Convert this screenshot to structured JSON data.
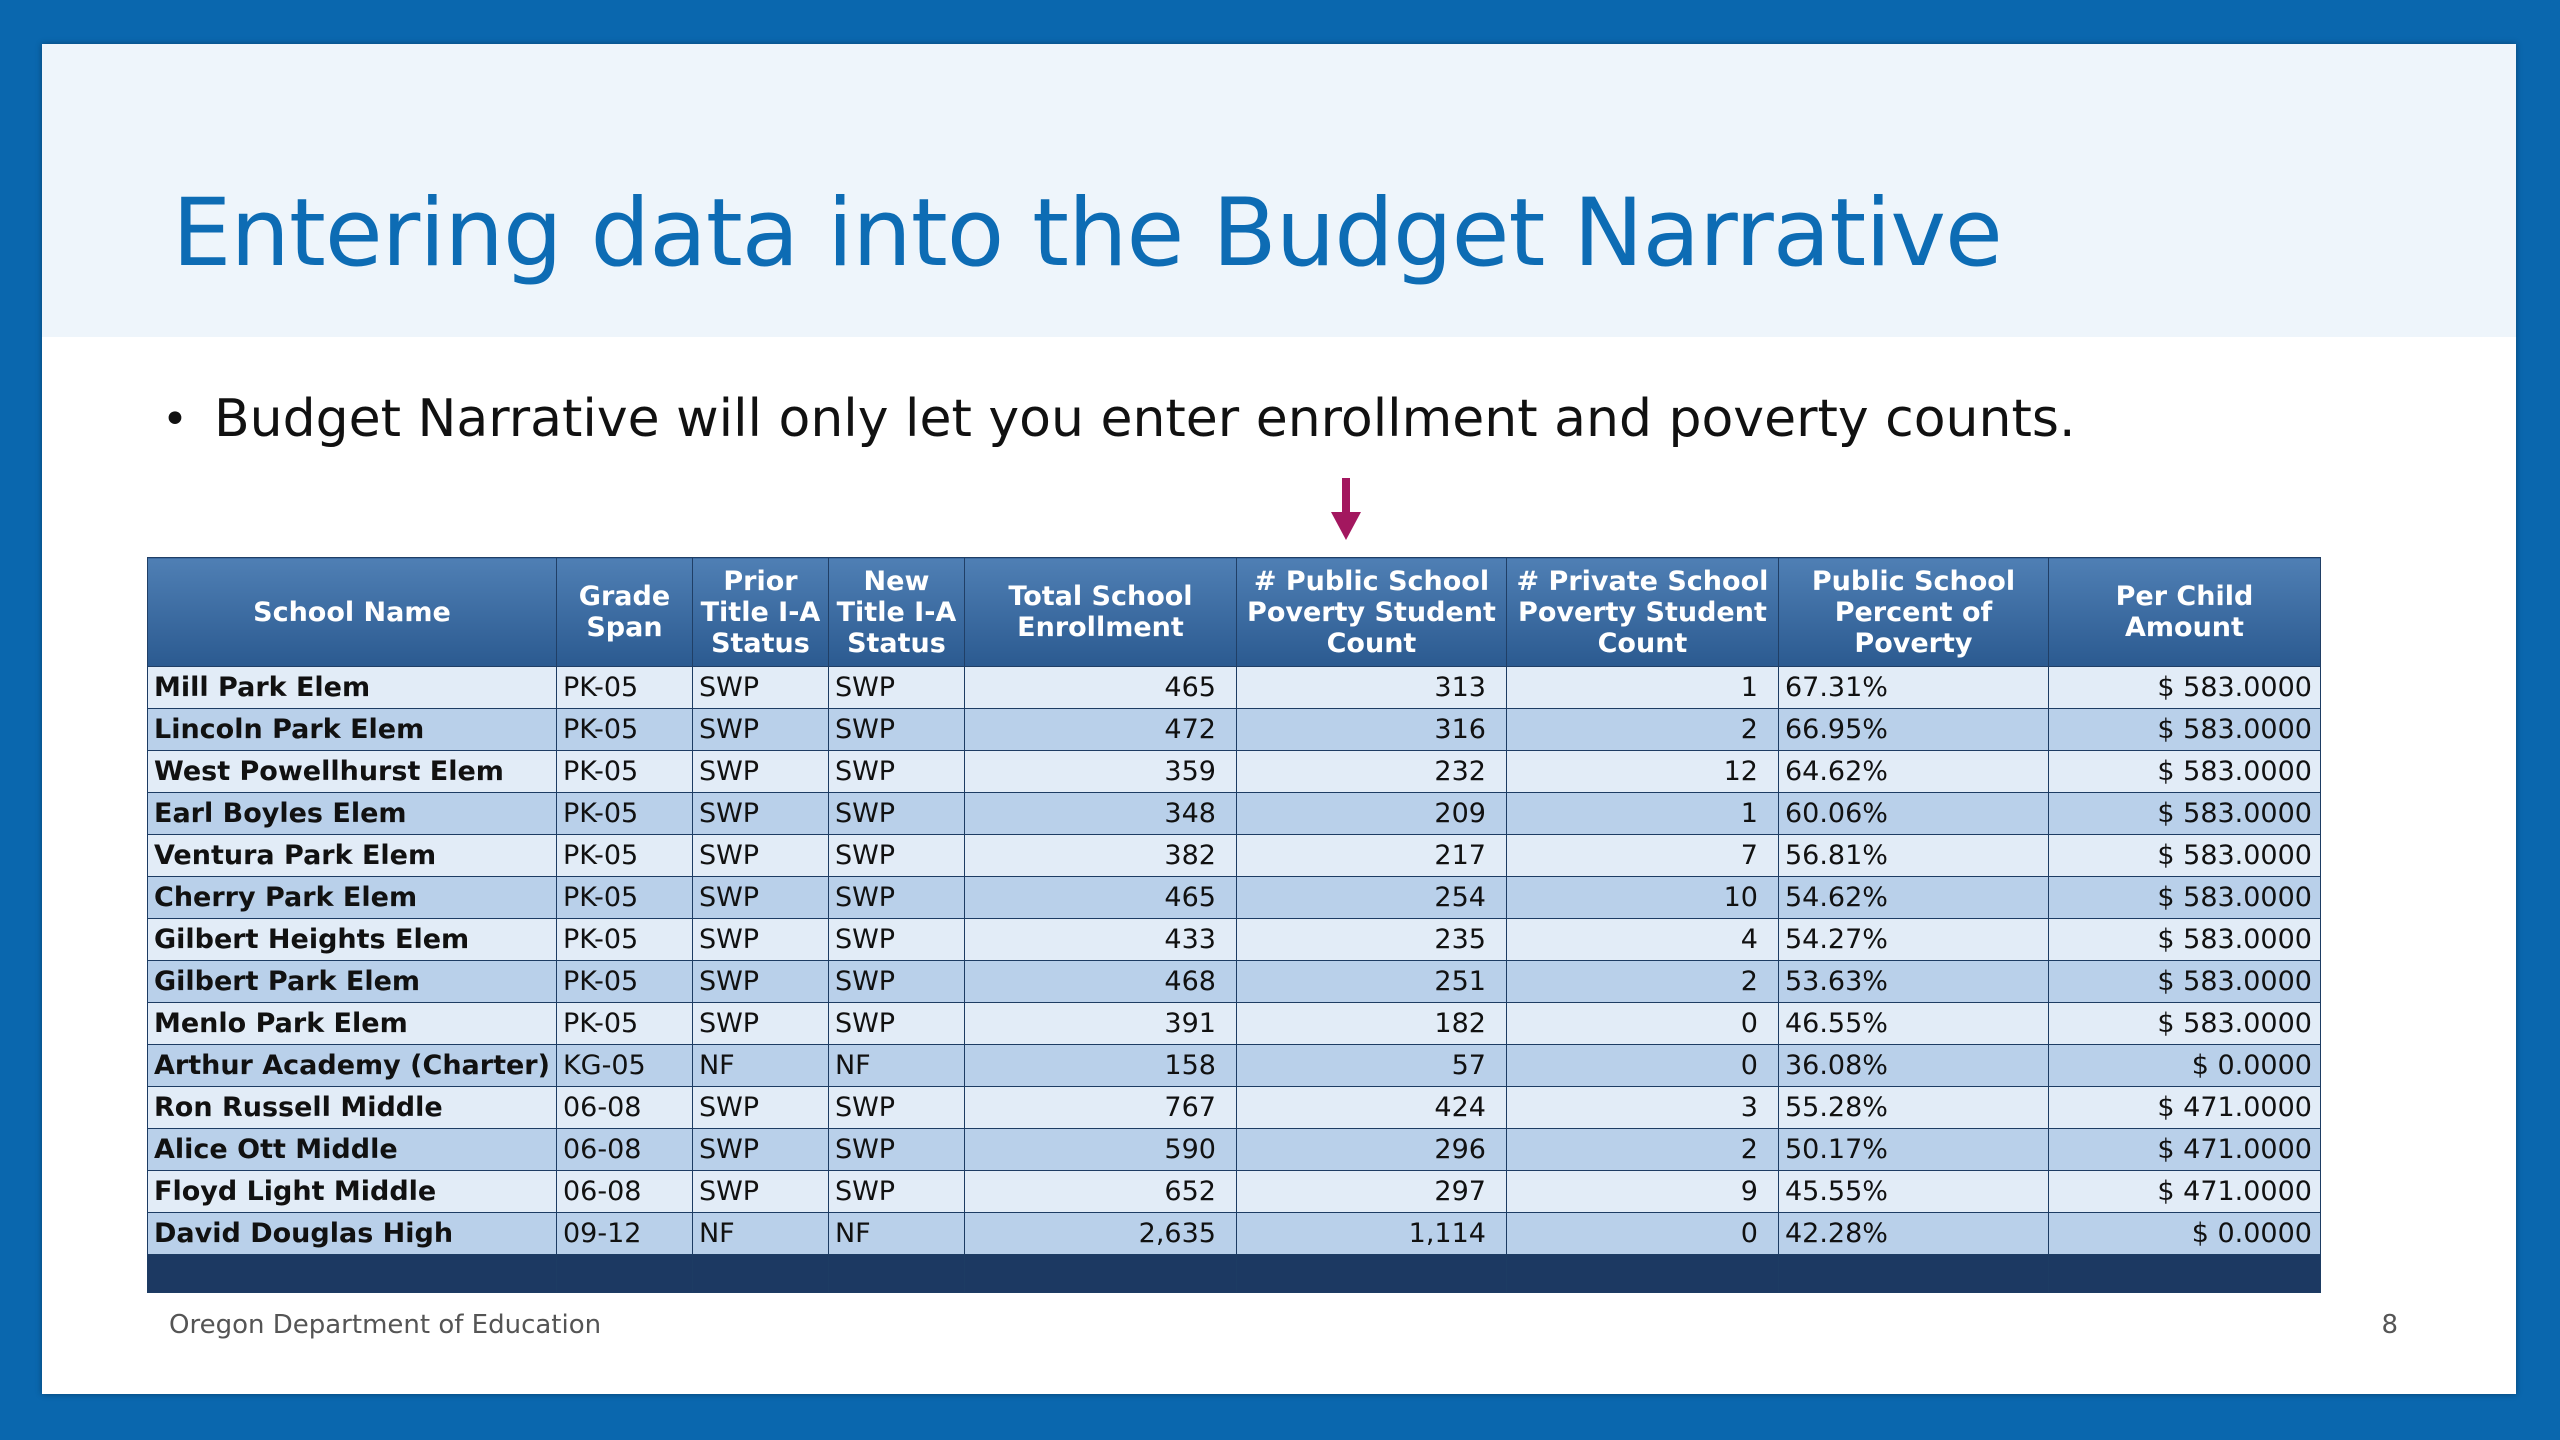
{
  "slide": {
    "title": "Entering data into the Budget Narrative",
    "bullet": "Budget Narrative will only let you enter enrollment and poverty counts.",
    "footer": "Oregon Department of Education",
    "page_number": "8",
    "colors": {
      "frame": "#0a67ae",
      "title": "#0d6cb4",
      "arrow": "#a3175f",
      "header": "#2b5a90"
    }
  },
  "table": {
    "headers": [
      "School Name",
      "Grade Span",
      "Prior Title I-A Status",
      "New Title I-A Status",
      "Total School Enrollment",
      "# Public School Poverty Student Count",
      "# Private School Poverty Student Count",
      "Public School Percent of Poverty",
      "Per Child Amount"
    ],
    "rows": [
      [
        "Mill Park Elem",
        "PK-05",
        "SWP",
        "SWP",
        "465",
        "313",
        "1",
        "67.31%",
        "$ 583.0000"
      ],
      [
        "Lincoln Park Elem",
        "PK-05",
        "SWP",
        "SWP",
        "472",
        "316",
        "2",
        "66.95%",
        "$ 583.0000"
      ],
      [
        "West Powellhurst Elem",
        "PK-05",
        "SWP",
        "SWP",
        "359",
        "232",
        "12",
        "64.62%",
        "$ 583.0000"
      ],
      [
        "Earl Boyles Elem",
        "PK-05",
        "SWP",
        "SWP",
        "348",
        "209",
        "1",
        "60.06%",
        "$ 583.0000"
      ],
      [
        "Ventura Park Elem",
        "PK-05",
        "SWP",
        "SWP",
        "382",
        "217",
        "7",
        "56.81%",
        "$ 583.0000"
      ],
      [
        "Cherry Park Elem",
        "PK-05",
        "SWP",
        "SWP",
        "465",
        "254",
        "10",
        "54.62%",
        "$ 583.0000"
      ],
      [
        "Gilbert Heights Elem",
        "PK-05",
        "SWP",
        "SWP",
        "433",
        "235",
        "4",
        "54.27%",
        "$ 583.0000"
      ],
      [
        "Gilbert Park Elem",
        "PK-05",
        "SWP",
        "SWP",
        "468",
        "251",
        "2",
        "53.63%",
        "$ 583.0000"
      ],
      [
        "Menlo Park Elem",
        "PK-05",
        "SWP",
        "SWP",
        "391",
        "182",
        "0",
        "46.55%",
        "$ 583.0000"
      ],
      [
        "Arthur Academy (Charter)",
        "KG-05",
        "NF",
        "NF",
        "158",
        "57",
        "0",
        "36.08%",
        "$ 0.0000"
      ],
      [
        "Ron Russell Middle",
        "06-08",
        "SWP",
        "SWP",
        "767",
        "424",
        "3",
        "55.28%",
        "$ 471.0000"
      ],
      [
        "Alice Ott Middle",
        "06-08",
        "SWP",
        "SWP",
        "590",
        "296",
        "2",
        "50.17%",
        "$ 471.0000"
      ],
      [
        "Floyd Light Middle",
        "06-08",
        "SWP",
        "SWP",
        "652",
        "297",
        "9",
        "45.55%",
        "$ 471.0000"
      ],
      [
        "David Douglas High",
        "09-12",
        "NF",
        "NF",
        "2,635",
        "1,114",
        "0",
        "42.28%",
        "$ 0.0000"
      ]
    ]
  }
}
